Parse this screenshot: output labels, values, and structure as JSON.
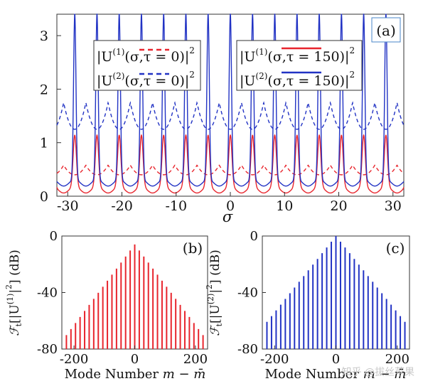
{
  "chart_data": [
    {
      "panel_label": "(a)",
      "type": "line",
      "xlabel": "σ",
      "ylabel": "",
      "xlim": [
        -32,
        32
      ],
      "ylim": [
        0,
        3.4
      ],
      "xticks": [
        -30,
        -20,
        -10,
        0,
        10,
        20,
        30
      ],
      "yticks": [
        0,
        1,
        2,
        3
      ],
      "period": 4.1,
      "series": [
        {
          "name_prefix": "|U",
          "name_sup": "(1)",
          "name_args": "(σ,τ = 0)",
          "name_suffix": "|",
          "name_power": "2",
          "color": "#e8252d",
          "style": "dashed",
          "baseline": 0.4,
          "peak": 0.58
        },
        {
          "name_prefix": "|U",
          "name_sup": "(2)",
          "name_args": "(σ,τ = 0)",
          "name_suffix": "|",
          "name_power": "2",
          "color": "#2233c4",
          "style": "dashed",
          "baseline": 1.25,
          "peak": 1.75
        },
        {
          "name_prefix": "|U",
          "name_sup": "(1)",
          "name_args": "(σ,τ = 150)",
          "name_suffix": "|",
          "name_power": "2",
          "color": "#e8252d",
          "style": "solid",
          "baseline": 0.12,
          "peak": 1.08
        },
        {
          "name_prefix": "|U",
          "name_sup": "(2)",
          "name_args": "(σ,τ = 150)",
          "name_suffix": "|",
          "name_power": "2",
          "color": "#2233c4",
          "style": "solid",
          "baseline": 0.25,
          "peak": 3.35
        }
      ]
    },
    {
      "panel_label": "(b)",
      "type": "bar",
      "xlabel_text": "Mode Number ",
      "xlabel_math": "m − m̄",
      "ylabel_prefix": "ℱ",
      "ylabel_sub": "t",
      "ylabel_body": "[|U",
      "ylabel_sup": "(1)",
      "ylabel_close": "|",
      "ylabel_power": "2",
      "ylabel_end": "] (dB)",
      "xlim": [
        -240,
        240
      ],
      "ylim": [
        -80,
        0
      ],
      "xticks": [
        -200,
        0,
        200
      ],
      "yticks": [
        0,
        -40,
        -80
      ],
      "color": "#e8252d",
      "mode_spacing": 15,
      "peak_db": -6,
      "slope_db_per_mode": 0.285,
      "modes_each_side": 15
    },
    {
      "panel_label": "(c)",
      "type": "bar",
      "xlabel_text": "Mode Number ",
      "xlabel_math": "m − m̄",
      "ylabel_prefix": "ℱ",
      "ylabel_sub": "t",
      "ylabel_body": "[|U",
      "ylabel_sup": "(2)",
      "ylabel_close": "|",
      "ylabel_power": "2",
      "ylabel_end": "] (dB)",
      "xlim": [
        -240,
        240
      ],
      "ylim": [
        -80,
        0
      ],
      "xticks": [
        -200,
        0,
        200
      ],
      "yticks": [
        0,
        -40,
        -80
      ],
      "color": "#2233c4",
      "mode_spacing": 15,
      "peak_db": 0,
      "slope_db_per_mode": 0.27,
      "modes_each_side": 15
    }
  ],
  "watermark": "知乎 @拔丝苹果"
}
